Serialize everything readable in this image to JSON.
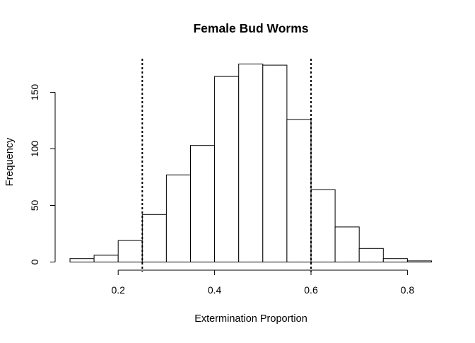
{
  "chart_data": {
    "type": "bar",
    "subtype": "histogram",
    "title": "Female Bud Worms",
    "xlabel": "Extermination Proportion",
    "ylabel": "Frequency",
    "bin_width": 0.05,
    "bins": [
      {
        "start": 0.1,
        "end": 0.15,
        "count": 3
      },
      {
        "start": 0.15,
        "end": 0.2,
        "count": 6
      },
      {
        "start": 0.2,
        "end": 0.25,
        "count": 19
      },
      {
        "start": 0.25,
        "end": 0.3,
        "count": 42
      },
      {
        "start": 0.3,
        "end": 0.35,
        "count": 77
      },
      {
        "start": 0.35,
        "end": 0.4,
        "count": 103
      },
      {
        "start": 0.4,
        "end": 0.45,
        "count": 164
      },
      {
        "start": 0.45,
        "end": 0.5,
        "count": 175
      },
      {
        "start": 0.5,
        "end": 0.55,
        "count": 174
      },
      {
        "start": 0.55,
        "end": 0.6,
        "count": 126
      },
      {
        "start": 0.6,
        "end": 0.65,
        "count": 64
      },
      {
        "start": 0.65,
        "end": 0.7,
        "count": 31
      },
      {
        "start": 0.7,
        "end": 0.75,
        "count": 12
      },
      {
        "start": 0.75,
        "end": 0.8,
        "count": 3
      },
      {
        "start": 0.8,
        "end": 0.85,
        "count": 1
      }
    ],
    "reference_lines": [
      {
        "x": 0.25,
        "style": "dotted"
      },
      {
        "x": 0.6,
        "style": "dotted"
      }
    ],
    "xlim": [
      0.1,
      0.85
    ],
    "ylim": [
      0,
      175
    ],
    "x_ticks": [
      {
        "value": 0.2,
        "label": "0.2"
      },
      {
        "value": 0.4,
        "label": "0.4"
      },
      {
        "value": 0.6,
        "label": "0.6"
      },
      {
        "value": 0.8,
        "label": "0.8"
      }
    ],
    "y_ticks": [
      {
        "value": 0,
        "label": "0"
      },
      {
        "value": 50,
        "label": "50"
      },
      {
        "value": 100,
        "label": "100"
      },
      {
        "value": 150,
        "label": "150"
      }
    ],
    "grid": false,
    "legend": "none",
    "colors": {
      "bar_fill": "#ffffff",
      "bar_stroke": "#000000",
      "line": "#000000",
      "background": "#ffffff"
    }
  }
}
